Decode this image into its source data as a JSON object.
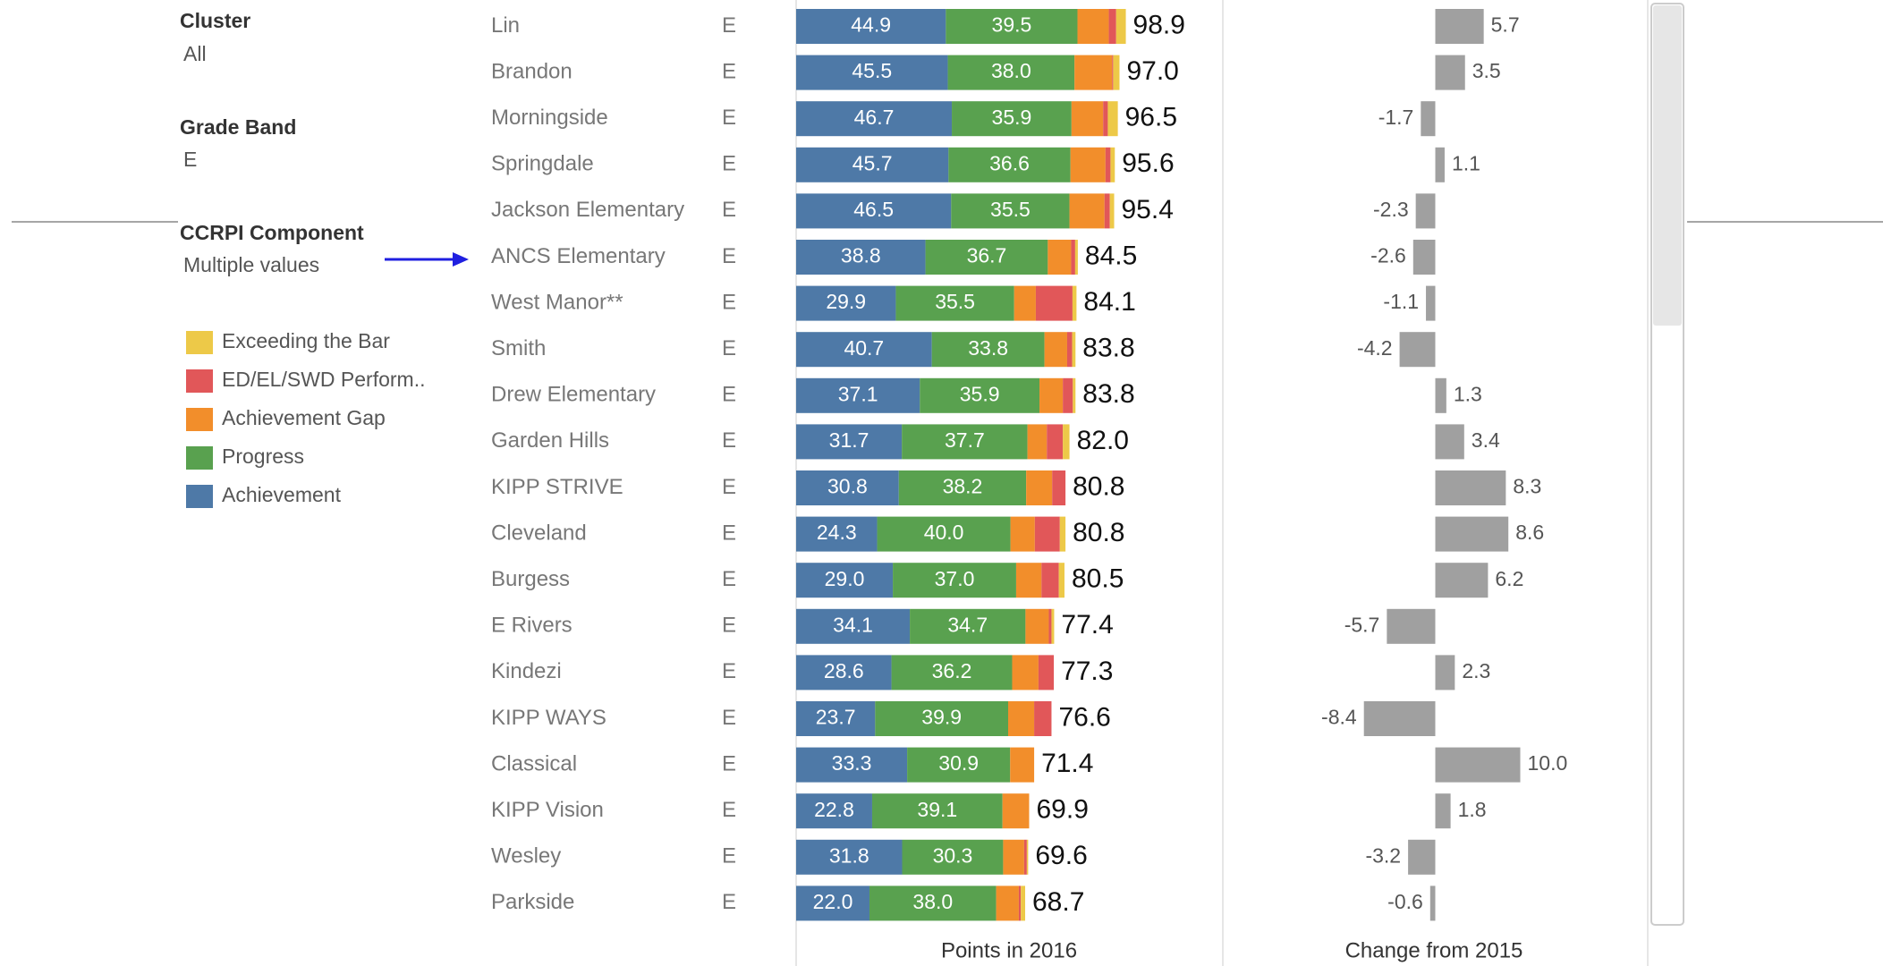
{
  "filters": [
    {
      "title": "Cluster",
      "value": "All"
    },
    {
      "title": "Grade Band",
      "value": "E"
    },
    {
      "title": "CCRPI Component",
      "value": "Multiple values"
    }
  ],
  "chart_data": [
    {
      "type": "stacked_bar",
      "orientation": "horizontal",
      "xlabel": "Points in 2016",
      "xlim": [
        0,
        128
      ],
      "categories": [
        "Lin",
        "Brandon",
        "Morningside",
        "Springdale",
        "Jackson Elementary",
        "ANCS Elementary",
        "West Manor**",
        "Smith",
        "Drew Elementary",
        "Garden Hills",
        "KIPP STRIVE",
        "Cleveland",
        "Burgess",
        "E Rivers",
        "Kindezi",
        "KIPP WAYS",
        "Classical",
        "KIPP Vision",
        "Wesley",
        "Parkside"
      ],
      "grade_band": [
        "E",
        "E",
        "E",
        "E",
        "E",
        "E",
        "E",
        "E",
        "E",
        "E",
        "E",
        "E",
        "E",
        "E",
        "E",
        "E",
        "E",
        "E",
        "E",
        "E"
      ],
      "series": [
        {
          "name": "Achievement",
          "color": "#4e79a7",
          "values": [
            44.9,
            45.5,
            46.7,
            45.7,
            46.5,
            38.8,
            29.9,
            40.7,
            37.1,
            31.7,
            30.8,
            24.3,
            29.0,
            34.1,
            28.6,
            23.7,
            33.3,
            22.8,
            31.8,
            22.0
          ],
          "value_labels": [
            "44.9",
            "45.5",
            "46.7",
            "45.7",
            "46.5",
            "38.8",
            "29.9",
            "40.7",
            "37.1",
            "31.7",
            "30.8",
            "24.3",
            "29.0",
            "34.1",
            "28.6",
            "23.7",
            "33.3",
            "22.8",
            "31.8",
            "22.0"
          ]
        },
        {
          "name": "Progress",
          "color": "#59a14f",
          "values": [
            39.5,
            38.0,
            35.9,
            36.6,
            35.5,
            36.7,
            35.5,
            33.8,
            35.9,
            37.7,
            38.2,
            40.0,
            37.0,
            34.7,
            36.2,
            39.9,
            30.9,
            39.1,
            30.3,
            38.0
          ],
          "value_labels": [
            "39.5",
            "38.0",
            "35.9",
            "36.6",
            "35.5",
            "36.7",
            "35.5",
            "33.8",
            "35.9",
            "37.7",
            "38.2",
            "40.0",
            "37.0",
            "34.7",
            "36.2",
            "39.9",
            "30.9",
            "39.1",
            "30.3",
            "38.0"
          ]
        },
        {
          "name": "Achievement Gap",
          "color": "#f28e2b",
          "values": [
            9.4,
            11.3,
            9.5,
            10.5,
            10.5,
            7.0,
            6.5,
            6.8,
            7.0,
            5.8,
            7.8,
            7.3,
            7.6,
            7.0,
            7.9,
            7.8,
            7.2,
            8.0,
            6.3,
            6.8
          ]
        },
        {
          "name": "ED/EL/SWD Perform..",
          "color": "#e15759",
          "values": [
            2.2,
            0.3,
            1.4,
            1.5,
            1.6,
            1.2,
            11.0,
            1.5,
            3.0,
            4.8,
            4.0,
            7.5,
            5.2,
            0.8,
            4.6,
            5.2,
            0,
            0,
            0.8,
            0.6
          ]
        },
        {
          "name": "Exceeding the Bar",
          "color": "#edc948",
          "values": [
            2.9,
            1.9,
            3.0,
            1.3,
            1.3,
            0.8,
            1.2,
            1.0,
            0.8,
            2.0,
            0,
            1.7,
            1.7,
            0.8,
            0,
            0,
            0,
            0,
            0.4,
            1.3
          ]
        }
      ],
      "totals": [
        98.9,
        97.0,
        96.5,
        95.6,
        95.4,
        84.5,
        84.1,
        83.8,
        83.8,
        82.0,
        80.8,
        80.8,
        80.5,
        77.4,
        77.3,
        76.6,
        71.4,
        69.9,
        69.6,
        68.7
      ],
      "totals_labels": [
        "98.9",
        "97.0",
        "96.5",
        "95.6",
        "95.4",
        "84.5",
        "84.1",
        "83.8",
        "83.8",
        "82.0",
        "80.8",
        "80.8",
        "80.5",
        "77.4",
        "77.3",
        "76.6",
        "71.4",
        "69.9",
        "69.6",
        "68.7"
      ]
    },
    {
      "type": "bar",
      "orientation": "horizontal",
      "xlabel": "Change from 2015",
      "xlim": [
        -25,
        25
      ],
      "color": "#a0a0a0",
      "values": [
        5.7,
        3.5,
        -1.7,
        1.1,
        -2.3,
        -2.6,
        -1.1,
        -4.2,
        1.3,
        3.4,
        8.3,
        8.6,
        6.2,
        -5.7,
        2.3,
        -8.4,
        10.0,
        1.8,
        -3.2,
        -0.6
      ],
      "value_labels": [
        "5.7",
        "3.5",
        "-1.7",
        "1.1",
        "-2.3",
        "-2.6",
        "-1.1",
        "-4.2",
        "1.3",
        "3.4",
        "8.3",
        "8.6",
        "6.2",
        "-5.7",
        "2.3",
        "-8.4",
        "10.0",
        "1.8",
        "-3.2",
        "-0.6"
      ]
    }
  ]
}
